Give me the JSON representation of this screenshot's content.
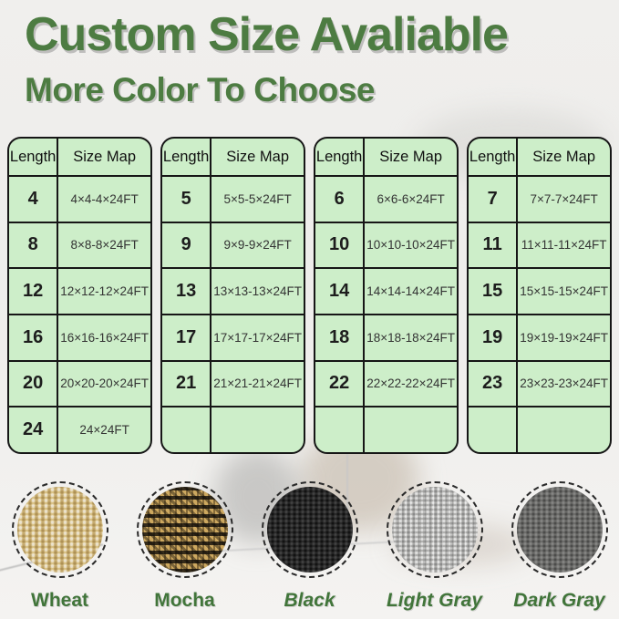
{
  "header": {
    "title": "Custom Size Avaliable",
    "subtitle": "More Color To Choose"
  },
  "size_tables": [
    {
      "headers": [
        "Length",
        "Size Map"
      ],
      "rows": [
        {
          "length": "4",
          "size_map": "4×4-4×24FT"
        },
        {
          "length": "8",
          "size_map": "8×8-8×24FT"
        },
        {
          "length": "12",
          "size_map": "12×12-12×24FT"
        },
        {
          "length": "16",
          "size_map": "16×16-16×24FT"
        },
        {
          "length": "20",
          "size_map": "20×20-20×24FT"
        },
        {
          "length": "24",
          "size_map": "24×24FT"
        }
      ]
    },
    {
      "headers": [
        "Length",
        "Size Map"
      ],
      "rows": [
        {
          "length": "5",
          "size_map": "5×5-5×24FT"
        },
        {
          "length": "9",
          "size_map": "9×9-9×24FT"
        },
        {
          "length": "13",
          "size_map": "13×13-13×24FT"
        },
        {
          "length": "17",
          "size_map": "17×17-17×24FT"
        },
        {
          "length": "21",
          "size_map": "21×21-21×24FT"
        },
        {
          "length": "",
          "size_map": ""
        }
      ]
    },
    {
      "headers": [
        "Length",
        "Size Map"
      ],
      "rows": [
        {
          "length": "6",
          "size_map": "6×6-6×24FT"
        },
        {
          "length": "10",
          "size_map": "10×10-10×24FT"
        },
        {
          "length": "14",
          "size_map": "14×14-14×24FT"
        },
        {
          "length": "18",
          "size_map": "18×18-18×24FT"
        },
        {
          "length": "22",
          "size_map": "22×22-22×24FT"
        },
        {
          "length": "",
          "size_map": ""
        }
      ]
    },
    {
      "headers": [
        "Length",
        "Size Map"
      ],
      "rows": [
        {
          "length": "7",
          "size_map": "7×7-7×24FT"
        },
        {
          "length": "11",
          "size_map": "11×11-11×24FT"
        },
        {
          "length": "15",
          "size_map": "15×15-15×24FT"
        },
        {
          "length": "19",
          "size_map": "19×19-19×24FT"
        },
        {
          "length": "23",
          "size_map": "23×23-23×24FT"
        },
        {
          "length": "",
          "size_map": ""
        }
      ]
    }
  ],
  "color_options": [
    {
      "label": "Wheat",
      "texture": "wheat",
      "italic": false,
      "swatch_hex": "#d8c186"
    },
    {
      "label": "Mocha",
      "texture": "mocha",
      "italic": false,
      "swatch_hex": "#5a4a2a"
    },
    {
      "label": "Black",
      "texture": "black",
      "italic": true,
      "swatch_hex": "#282828"
    },
    {
      "label": "Light Gray",
      "texture": "lightgray",
      "italic": true,
      "swatch_hex": "#aeaeac"
    },
    {
      "label": "Dark Gray",
      "texture": "darkgray",
      "italic": true,
      "swatch_hex": "#6b6b69"
    }
  ],
  "theme": {
    "heading_green": "#4d7c42",
    "label_green": "#41753a",
    "table_bg_green": "#cdeec9",
    "table_border": "#161616",
    "background": "#f0efed"
  }
}
